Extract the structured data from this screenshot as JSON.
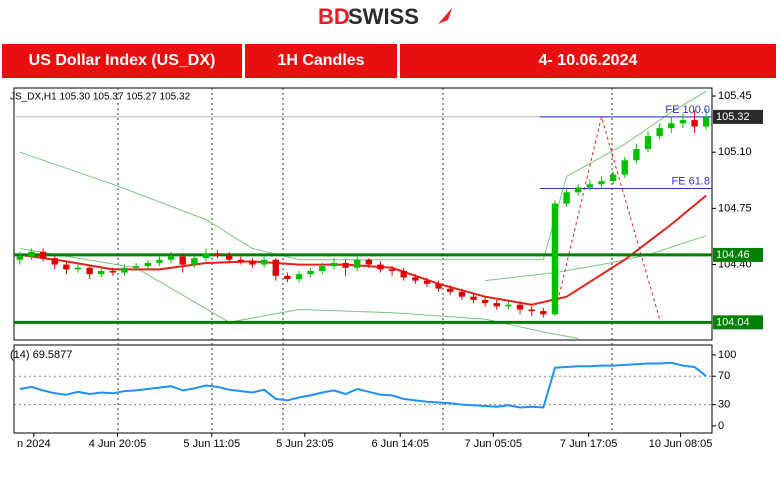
{
  "header": {
    "logo_parts": [
      "BD",
      "SWISS"
    ],
    "cells": [
      "US Dollar Index (US_DX)",
      "1H Candles",
      "4- 10.06.2024"
    ]
  },
  "chart_data": {
    "type": "candlestick",
    "symbol_info": "JS_DX,H1  105.30 105.37 105.27 105.32",
    "xlim": [
      -0.5,
      59.5
    ],
    "xticks": [
      {
        "value": 1.2,
        "label": "n 2024"
      },
      {
        "value": 8.4,
        "label": "4 Jun 20:05"
      },
      {
        "value": 16.5,
        "label": "5 Jun 11:05"
      },
      {
        "value": 24.5,
        "label": "5 Jun 23:05"
      },
      {
        "value": 32.7,
        "label": "6 Jun 14:05"
      },
      {
        "value": 40.7,
        "label": "7 Jun 05:05"
      },
      {
        "value": 48.9,
        "label": "7 Jun 17:05"
      },
      {
        "value": 56.8,
        "label": "10 Jun 08:05"
      }
    ],
    "ylim": [
      103.93,
      105.5
    ],
    "yticks": [
      105.45,
      {
        "value": 105.1,
        "label": "105.10"
      },
      104.75,
      {
        "value": 104.4,
        "label": "104.40"
      }
    ],
    "up_color": "#00c000",
    "down_color": "#e00000",
    "candles": {
      "open": [
        104.43,
        104.45,
        104.48,
        104.44,
        104.4,
        104.37,
        104.38,
        104.34,
        104.36,
        104.35,
        104.38,
        104.39,
        104.41,
        104.43,
        104.45,
        104.4,
        104.44,
        104.47,
        104.46,
        104.43,
        104.42,
        104.4,
        104.43,
        104.33,
        104.31,
        104.34,
        104.36,
        104.39,
        104.41,
        104.38,
        104.43,
        104.4,
        104.37,
        104.36,
        104.32,
        104.3,
        104.28,
        104.25,
        104.23,
        104.2,
        104.18,
        104.16,
        104.14,
        104.15,
        104.12,
        104.11,
        104.09,
        104.78,
        104.85,
        104.88,
        104.9,
        104.92,
        104.96,
        105.05,
        105.12,
        105.2,
        105.25,
        105.28,
        105.3,
        105.26
      ],
      "high": [
        104.48,
        104.5,
        104.5,
        104.46,
        104.42,
        104.4,
        104.4,
        104.38,
        104.38,
        104.4,
        104.41,
        104.43,
        104.45,
        104.48,
        104.47,
        104.46,
        104.5,
        104.49,
        104.48,
        104.45,
        104.44,
        104.45,
        104.44,
        104.35,
        104.36,
        104.38,
        104.41,
        104.44,
        104.43,
        104.45,
        104.44,
        104.42,
        104.39,
        104.38,
        104.34,
        104.32,
        104.3,
        104.27,
        104.25,
        104.22,
        104.2,
        104.18,
        104.17,
        104.17,
        104.14,
        104.13,
        104.8,
        104.88,
        104.9,
        104.93,
        104.95,
        104.98,
        105.07,
        105.15,
        105.23,
        105.28,
        105.32,
        105.34,
        105.36,
        105.37
      ],
      "low": [
        104.4,
        104.43,
        104.42,
        104.37,
        104.34,
        104.35,
        104.31,
        104.32,
        104.33,
        104.33,
        104.36,
        104.37,
        104.39,
        104.41,
        104.35,
        104.38,
        104.42,
        104.44,
        104.41,
        104.4,
        104.38,
        104.38,
        104.3,
        104.29,
        104.29,
        104.32,
        104.34,
        104.37,
        104.33,
        104.36,
        104.38,
        104.35,
        104.33,
        104.3,
        104.28,
        104.26,
        104.23,
        104.21,
        104.18,
        104.16,
        104.14,
        104.12,
        104.12,
        104.09,
        104.08,
        104.07,
        104.08,
        104.76,
        104.83,
        104.86,
        104.88,
        104.9,
        104.94,
        105.03,
        105.1,
        105.18,
        105.22,
        105.25,
        105.22,
        105.24
      ],
      "close": [
        104.45,
        104.48,
        104.44,
        104.4,
        104.37,
        104.38,
        104.34,
        104.36,
        104.35,
        104.38,
        104.39,
        104.41,
        104.43,
        104.45,
        104.4,
        104.44,
        104.47,
        104.46,
        104.43,
        104.42,
        104.4,
        104.43,
        104.33,
        104.31,
        104.34,
        104.36,
        104.39,
        104.41,
        104.38,
        104.43,
        104.4,
        104.37,
        104.36,
        104.32,
        104.3,
        104.28,
        104.25,
        104.23,
        104.2,
        104.18,
        104.16,
        104.14,
        104.15,
        104.12,
        104.11,
        104.09,
        104.78,
        104.85,
        104.88,
        104.9,
        104.92,
        104.96,
        105.05,
        105.12,
        105.2,
        105.25,
        105.28,
        105.3,
        105.26,
        105.32
      ]
    },
    "overlays": [
      {
        "color": "#7cc47c",
        "width": 1,
        "x": [
          0,
          8,
          16,
          20,
          24,
          32,
          40,
          45,
          47,
          52,
          56,
          59
        ],
        "values": [
          105.1,
          104.9,
          104.68,
          104.5,
          104.43,
          104.43,
          104.43,
          104.43,
          104.95,
          105.15,
          105.35,
          105.48
        ]
      },
      {
        "color": "#7cc47c",
        "width": 1,
        "x": [
          0,
          10,
          18,
          24,
          32,
          40,
          45,
          48
        ],
        "values": [
          104.5,
          104.38,
          104.04,
          104.12,
          104.1,
          104.06,
          103.98,
          103.94
        ]
      },
      {
        "color": "#7cc47c",
        "width": 1,
        "x": [
          40,
          46,
          50,
          54,
          59
        ],
        "values": [
          104.3,
          104.35,
          104.4,
          104.46,
          104.58
        ]
      },
      {
        "color": "#e8201a",
        "width": 2,
        "x": [
          0,
          4,
          8,
          12,
          16,
          20,
          24,
          28,
          32,
          36,
          40,
          44,
          47,
          52,
          56,
          59
        ],
        "values": [
          104.46,
          104.42,
          104.37,
          104.37,
          104.41,
          104.42,
          104.4,
          104.4,
          104.38,
          104.28,
          104.2,
          104.15,
          104.2,
          104.43,
          104.65,
          104.83
        ]
      },
      {
        "color": "#e8201a",
        "width": 1,
        "dash": true,
        "x": [
          46,
          50,
          55
        ],
        "values": [
          104.1,
          105.32,
          104.06
        ]
      }
    ],
    "levels": [
      {
        "value": 104.46,
        "label": "104.46"
      },
      {
        "value": 104.04,
        "label": "104.04"
      }
    ],
    "level_color": "#008000",
    "fibo": [
      {
        "value": 105.32,
        "label": "FE 100.0"
      },
      {
        "value": 104.874,
        "label": "FE 61.8"
      }
    ],
    "fibo_color": "#3030d0",
    "last_price": {
      "value": 105.32,
      "label": "105.32"
    },
    "rsi": {
      "label": "(14) 69.5877",
      "color": "#1e90ff",
      "ylim": [
        -10,
        114
      ],
      "yticks": [
        100,
        70,
        30,
        0
      ],
      "values": [
        52,
        55,
        50,
        46,
        44,
        48,
        45,
        47,
        46,
        49,
        50,
        52,
        54,
        56,
        50,
        53,
        57,
        55,
        51,
        49,
        47,
        51,
        38,
        36,
        40,
        43,
        47,
        50,
        45,
        52,
        48,
        44,
        43,
        38,
        36,
        34,
        33,
        32,
        30,
        29,
        28,
        27,
        29,
        26,
        27,
        26,
        82,
        83,
        84,
        84,
        85,
        85,
        86,
        87,
        88,
        88,
        89,
        85,
        83,
        70
      ]
    }
  }
}
